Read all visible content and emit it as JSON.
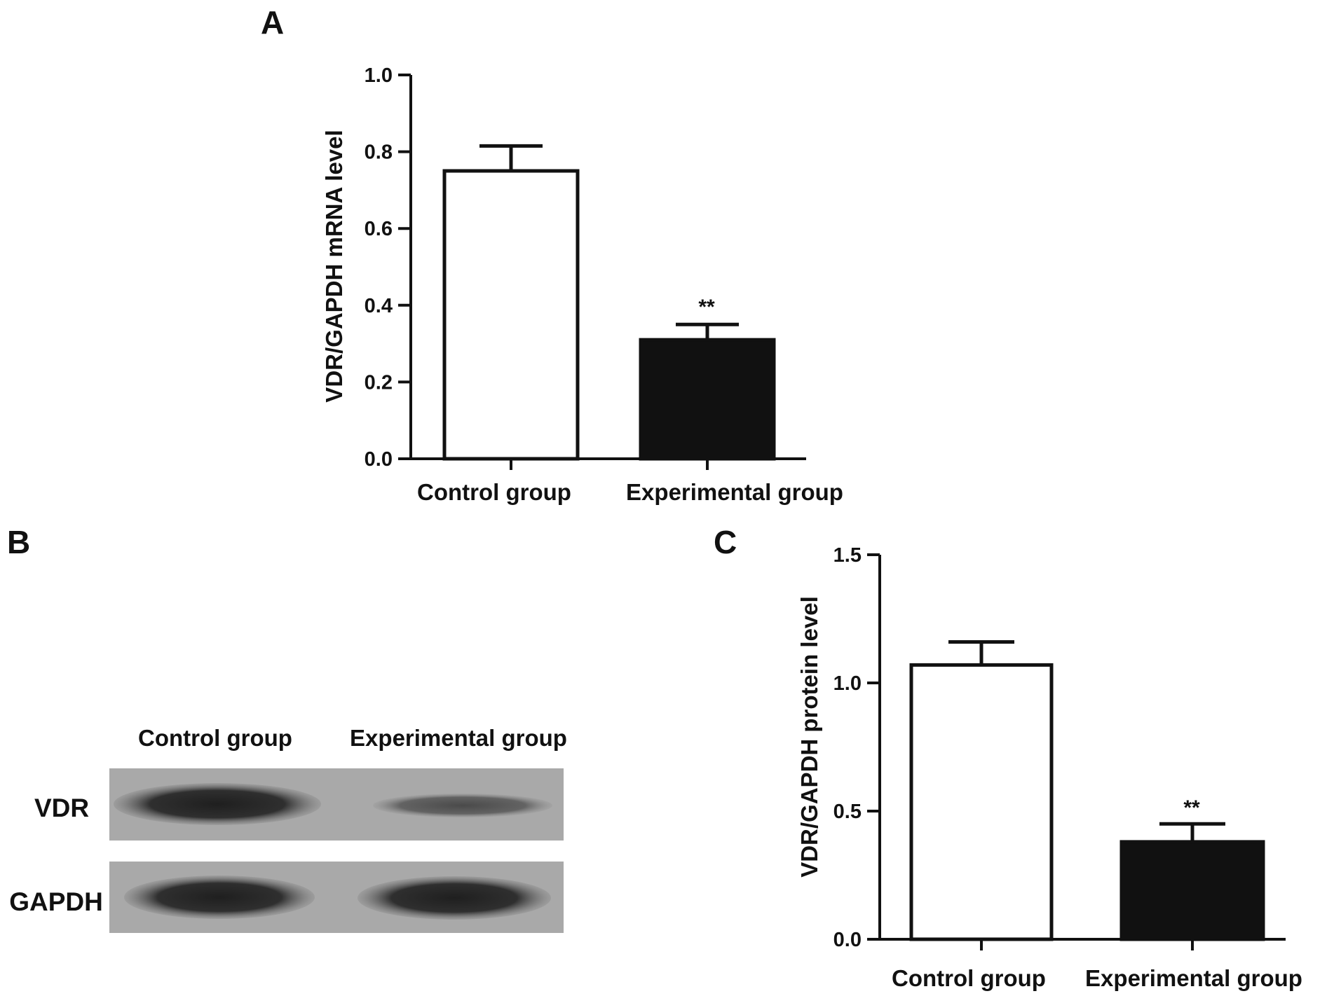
{
  "panels": {
    "A": "A",
    "B": "B",
    "C": "C"
  },
  "colors": {
    "axis": "#111111",
    "control_fill": "#ffffff",
    "experimental_fill": "#111111",
    "blot_background": "#a9a9a9",
    "blot_band": "#2b2b2b"
  },
  "chart_data": [
    {
      "panel": "A",
      "type": "bar",
      "categories": [
        "Control group",
        "Experimental group"
      ],
      "values": [
        0.75,
        0.31
      ],
      "errors": [
        0.065,
        0.04
      ],
      "significance": [
        "",
        "**"
      ],
      "ylabel": "VDR/GAPDH mRNA level",
      "ylim": [
        0,
        1.0
      ],
      "yticks": [
        "0.0",
        "0.2",
        "0.4",
        "0.6",
        "0.8",
        "1.0"
      ],
      "bar_fills": [
        "#ffffff",
        "#111111"
      ],
      "grid": false
    },
    {
      "panel": "C",
      "type": "bar",
      "categories": [
        "Control group",
        "Experimental group"
      ],
      "values": [
        1.07,
        0.38
      ],
      "errors": [
        0.09,
        0.07
      ],
      "significance": [
        "",
        "**"
      ],
      "ylabel": "VDR/GAPDH protein level",
      "ylim": [
        0,
        1.5
      ],
      "yticks": [
        "0.0",
        "0.5",
        "1.0",
        "1.5"
      ],
      "bar_fills": [
        "#ffffff",
        "#111111"
      ],
      "grid": false
    }
  ],
  "western_blot": {
    "lanes": [
      "Control group",
      "Experimental group"
    ],
    "rows": [
      "VDR",
      "GAPDH"
    ]
  }
}
